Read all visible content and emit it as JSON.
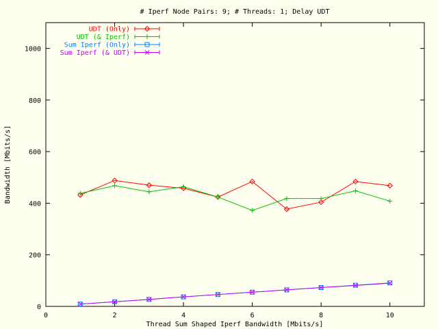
{
  "chart_data": {
    "type": "line",
    "title": "# Iperf Node Pairs: 9; # Threads: 1; Delay UDT",
    "xlabel": "Thread Sum Shaped Iperf Bandwidth [Mbits/s]",
    "ylabel": "Bandwidth [Mbits/s]",
    "xlim": [
      0,
      11
    ],
    "ylim": [
      0,
      1100
    ],
    "xticks": [
      0,
      2,
      4,
      6,
      8,
      10
    ],
    "yticks": [
      0,
      200,
      400,
      600,
      800,
      1000
    ],
    "grid": false,
    "legend_position": "top-left",
    "x": [
      1,
      2,
      3,
      4,
      5,
      6,
      7,
      8,
      9,
      10
    ],
    "series": [
      {
        "name": "UDT (Only)",
        "color": "#ff0000",
        "marker": "diamond",
        "values": [
          432,
          488,
          470,
          458,
          424,
          484,
          377,
          404,
          484,
          468
        ]
      },
      {
        "name": "UDT (& Iperf)",
        "color": "#00c000",
        "marker": "plus",
        "values": [
          438,
          468,
          444,
          464,
          424,
          372,
          418,
          418,
          448,
          408
        ]
      },
      {
        "name": "Sum Iperf (Only)",
        "color": "#0080ff",
        "marker": "square",
        "values": [
          9,
          18,
          27,
          37,
          46,
          55,
          64,
          73,
          82,
          91
        ]
      },
      {
        "name": "Sum Iperf (& UDT)",
        "color": "#c000ff",
        "marker": "x",
        "values": [
          9,
          18,
          27,
          37,
          46,
          55,
          64,
          73,
          81,
          90
        ]
      }
    ]
  }
}
